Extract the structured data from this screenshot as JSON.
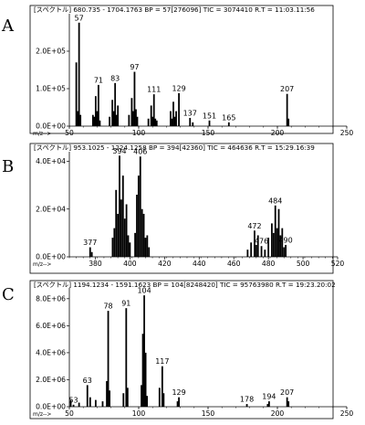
{
  "chart_data": [
    {
      "type": "bar",
      "panel_label": "A",
      "header": "[スペクトル]  680.735 - 1704.1763  BP = 57[276096]  TIC = 3074410  R.T = 11:03.11:56",
      "x_unit": "m/z-->",
      "xlim": [
        50,
        250
      ],
      "ylim": [
        0,
        300000
      ],
      "x_ticks": [
        50,
        100,
        150,
        200,
        250
      ],
      "y_ticks": [
        {
          "value": 0,
          "label": "0.0E+00"
        },
        {
          "value": 100000,
          "label": "1.0E+05"
        },
        {
          "value": 200000,
          "label": "2.0E+05"
        }
      ],
      "peaks": [
        {
          "mz": 55,
          "intensity": 170000
        },
        {
          "mz": 56,
          "intensity": 40000
        },
        {
          "mz": 57,
          "intensity": 276096
        },
        {
          "mz": 58,
          "intensity": 30000
        },
        {
          "mz": 67,
          "intensity": 30000
        },
        {
          "mz": 68,
          "intensity": 25000
        },
        {
          "mz": 69,
          "intensity": 80000
        },
        {
          "mz": 70,
          "intensity": 40000
        },
        {
          "mz": 71,
          "intensity": 110000
        },
        {
          "mz": 72,
          "intensity": 15000
        },
        {
          "mz": 79,
          "intensity": 25000
        },
        {
          "mz": 81,
          "intensity": 70000
        },
        {
          "mz": 82,
          "intensity": 40000
        },
        {
          "mz": 83,
          "intensity": 115000
        },
        {
          "mz": 84,
          "intensity": 30000
        },
        {
          "mz": 85,
          "intensity": 55000
        },
        {
          "mz": 93,
          "intensity": 30000
        },
        {
          "mz": 95,
          "intensity": 75000
        },
        {
          "mz": 96,
          "intensity": 40000
        },
        {
          "mz": 97,
          "intensity": 145000
        },
        {
          "mz": 98,
          "intensity": 45000
        },
        {
          "mz": 99,
          "intensity": 25000
        },
        {
          "mz": 107,
          "intensity": 20000
        },
        {
          "mz": 109,
          "intensity": 55000
        },
        {
          "mz": 110,
          "intensity": 25000
        },
        {
          "mz": 111,
          "intensity": 85000
        },
        {
          "mz": 112,
          "intensity": 20000
        },
        {
          "mz": 113,
          "intensity": 15000
        },
        {
          "mz": 123,
          "intensity": 40000
        },
        {
          "mz": 124,
          "intensity": 20000
        },
        {
          "mz": 125,
          "intensity": 65000
        },
        {
          "mz": 126,
          "intensity": 25000
        },
        {
          "mz": 127,
          "intensity": 40000
        },
        {
          "mz": 129,
          "intensity": 88000
        },
        {
          "mz": 137,
          "intensity": 22000
        },
        {
          "mz": 139,
          "intensity": 10000
        },
        {
          "mz": 151,
          "intensity": 15000
        },
        {
          "mz": 165,
          "intensity": 10000
        },
        {
          "mz": 207,
          "intensity": 86000
        },
        {
          "mz": 208,
          "intensity": 20000
        }
      ],
      "labels": [
        {
          "mz": 57,
          "text": "57"
        },
        {
          "mz": 71,
          "text": "71"
        },
        {
          "mz": 83,
          "text": "83"
        },
        {
          "mz": 97,
          "text": "97"
        },
        {
          "mz": 111,
          "text": "111"
        },
        {
          "mz": 129,
          "text": "129"
        },
        {
          "mz": 137,
          "text": "137"
        },
        {
          "mz": 151,
          "text": "151"
        },
        {
          "mz": 165,
          "text": "165"
        },
        {
          "mz": 207,
          "text": "207"
        }
      ]
    },
    {
      "type": "bar",
      "panel_label": "B",
      "header": "[スペクトル]  953.1025 - 1224.1258  BP = 394[42360]  TIC = 464636  R.T = 15:29.16:39",
      "x_unit": "m/z-->",
      "xlim": [
        365,
        520
      ],
      "ylim": [
        0,
        44000
      ],
      "x_ticks": [
        380,
        400,
        420,
        440,
        460,
        480,
        500,
        520
      ],
      "y_ticks": [
        {
          "value": 0,
          "label": "0.0E+00"
        },
        {
          "value": 20000,
          "label": "2.0E+04"
        },
        {
          "value": 40000,
          "label": "4.0E+04"
        }
      ],
      "peaks": [
        {
          "mz": 377,
          "intensity": 4000
        },
        {
          "mz": 378,
          "intensity": 2000
        },
        {
          "mz": 390,
          "intensity": 8000
        },
        {
          "mz": 391,
          "intensity": 12000
        },
        {
          "mz": 392,
          "intensity": 28000
        },
        {
          "mz": 393,
          "intensity": 18000
        },
        {
          "mz": 394,
          "intensity": 42360
        },
        {
          "mz": 395,
          "intensity": 24000
        },
        {
          "mz": 396,
          "intensity": 34000
        },
        {
          "mz": 397,
          "intensity": 16000
        },
        {
          "mz": 398,
          "intensity": 22000
        },
        {
          "mz": 399,
          "intensity": 9000
        },
        {
          "mz": 400,
          "intensity": 6000
        },
        {
          "mz": 403,
          "intensity": 10000
        },
        {
          "mz": 404,
          "intensity": 26000
        },
        {
          "mz": 405,
          "intensity": 34000
        },
        {
          "mz": 406,
          "intensity": 42000
        },
        {
          "mz": 407,
          "intensity": 20000
        },
        {
          "mz": 408,
          "intensity": 18000
        },
        {
          "mz": 409,
          "intensity": 8000
        },
        {
          "mz": 410,
          "intensity": 9000
        },
        {
          "mz": 411,
          "intensity": 4000
        },
        {
          "mz": 468,
          "intensity": 3000
        },
        {
          "mz": 470,
          "intensity": 6000
        },
        {
          "mz": 472,
          "intensity": 11000
        },
        {
          "mz": 473,
          "intensity": 5000
        },
        {
          "mz": 474,
          "intensity": 9000
        },
        {
          "mz": 476,
          "intensity": 4500
        },
        {
          "mz": 478,
          "intensity": 3000
        },
        {
          "mz": 480,
          "intensity": 8000
        },
        {
          "mz": 482,
          "intensity": 14000
        },
        {
          "mz": 483,
          "intensity": 10000
        },
        {
          "mz": 484,
          "intensity": 21500
        },
        {
          "mz": 485,
          "intensity": 12000
        },
        {
          "mz": 486,
          "intensity": 20000
        },
        {
          "mz": 487,
          "intensity": 9000
        },
        {
          "mz": 488,
          "intensity": 12000
        },
        {
          "mz": 489,
          "intensity": 4000
        },
        {
          "mz": 490,
          "intensity": 5000
        }
      ],
      "labels": [
        {
          "mz": 377,
          "text": "377"
        },
        {
          "mz": 394,
          "text": "394"
        },
        {
          "mz": 406,
          "text": "406"
        },
        {
          "mz": 472,
          "text": "472"
        },
        {
          "mz": 476,
          "text": "476"
        },
        {
          "mz": 484,
          "text": "484"
        },
        {
          "mz": 490,
          "text": "490"
        }
      ]
    },
    {
      "type": "bar",
      "panel_label": "C",
      "header": "[スペクトル]  1194.1234 - 1591.1623  BP = 104[8248420]  TIC = 95763980  R.T = 19:23.20:02",
      "x_unit": "m/z-->",
      "xlim": [
        50,
        250
      ],
      "ylim": [
        0,
        8800000
      ],
      "x_ticks": [
        50,
        100,
        150,
        200,
        250
      ],
      "y_ticks": [
        {
          "value": 0,
          "label": "0.0E+00"
        },
        {
          "value": 2000000,
          "label": "2.0E+06"
        },
        {
          "value": 4000000,
          "label": "4.0E+06"
        },
        {
          "value": 6000000,
          "label": "6.0E+06"
        },
        {
          "value": 8000000,
          "label": "8.0E+06"
        }
      ],
      "peaks": [
        {
          "mz": 51,
          "intensity": 500000
        },
        {
          "mz": 53,
          "intensity": 150000
        },
        {
          "mz": 57,
          "intensity": 300000
        },
        {
          "mz": 63,
          "intensity": 1600000
        },
        {
          "mz": 65,
          "intensity": 700000
        },
        {
          "mz": 69,
          "intensity": 500000
        },
        {
          "mz": 74,
          "intensity": 400000
        },
        {
          "mz": 77,
          "intensity": 1900000
        },
        {
          "mz": 78,
          "intensity": 7100000
        },
        {
          "mz": 79,
          "intensity": 1200000
        },
        {
          "mz": 89,
          "intensity": 1000000
        },
        {
          "mz": 91,
          "intensity": 7300000
        },
        {
          "mz": 92,
          "intensity": 1400000
        },
        {
          "mz": 102,
          "intensity": 1600000
        },
        {
          "mz": 103,
          "intensity": 5400000
        },
        {
          "mz": 104,
          "intensity": 8248420
        },
        {
          "mz": 105,
          "intensity": 4000000
        },
        {
          "mz": 106,
          "intensity": 800000
        },
        {
          "mz": 115,
          "intensity": 1400000
        },
        {
          "mz": 117,
          "intensity": 3000000
        },
        {
          "mz": 118,
          "intensity": 1000000
        },
        {
          "mz": 128,
          "intensity": 400000
        },
        {
          "mz": 129,
          "intensity": 700000
        },
        {
          "mz": 178,
          "intensity": 200000
        },
        {
          "mz": 193,
          "intensity": 200000
        },
        {
          "mz": 194,
          "intensity": 400000
        },
        {
          "mz": 207,
          "intensity": 700000
        },
        {
          "mz": 208,
          "intensity": 400000
        }
      ],
      "labels": [
        {
          "mz": 53,
          "text": "53"
        },
        {
          "mz": 63,
          "text": "63"
        },
        {
          "mz": 78,
          "text": "78"
        },
        {
          "mz": 91,
          "text": "91"
        },
        {
          "mz": 104,
          "text": "104"
        },
        {
          "mz": 117,
          "text": "117"
        },
        {
          "mz": 129,
          "text": "129"
        },
        {
          "mz": 178,
          "text": "178"
        },
        {
          "mz": 194,
          "text": "194"
        },
        {
          "mz": 207,
          "text": "207"
        }
      ]
    }
  ]
}
